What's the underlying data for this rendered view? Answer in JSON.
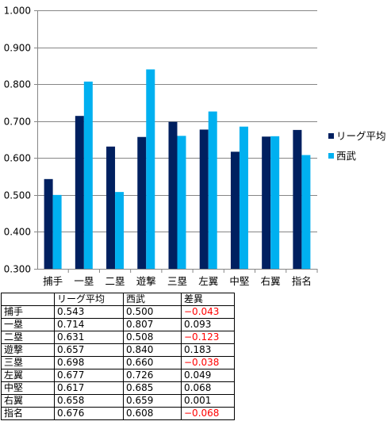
{
  "chart_data": {
    "type": "bar",
    "categories": [
      "捕手",
      "一塁",
      "二塁",
      "遊撃",
      "三塁",
      "左翼",
      "中堅",
      "右翼",
      "指名"
    ],
    "series": [
      {
        "name": "リーグ平均",
        "color": "#002060",
        "values": [
          0.543,
          0.714,
          0.631,
          0.657,
          0.698,
          0.677,
          0.617,
          0.658,
          0.676
        ]
      },
      {
        "name": "西武",
        "color": "#00b0f0",
        "values": [
          0.5,
          0.807,
          0.508,
          0.84,
          0.66,
          0.726,
          0.685,
          0.659,
          0.608
        ]
      }
    ],
    "yticks": [
      "1.000",
      "0.900",
      "0.800",
      "0.700",
      "0.600",
      "0.500",
      "0.400",
      "0.300"
    ],
    "ylim": [
      0.3,
      1.0
    ],
    "grid": true,
    "legend": "right"
  },
  "table": {
    "headers": [
      "",
      "リーグ平均",
      "西武",
      "差異"
    ],
    "rows": [
      {
        "pos": "捕手",
        "avg": "0.543",
        "team": "0.500",
        "diff": "−0.043",
        "negative": true
      },
      {
        "pos": "一塁",
        "avg": "0.714",
        "team": "0.807",
        "diff": "0.093",
        "negative": false
      },
      {
        "pos": "二塁",
        "avg": "0.631",
        "team": "0.508",
        "diff": "−0.123",
        "negative": true
      },
      {
        "pos": "遊撃",
        "avg": "0.657",
        "team": "0.840",
        "diff": "0.183",
        "negative": false
      },
      {
        "pos": "三塁",
        "avg": "0.698",
        "team": "0.660",
        "diff": "−0.038",
        "negative": true
      },
      {
        "pos": "左翼",
        "avg": "0.677",
        "team": "0.726",
        "diff": "0.049",
        "negative": false
      },
      {
        "pos": "中堅",
        "avg": "0.617",
        "team": "0.685",
        "diff": "0.068",
        "negative": false
      },
      {
        "pos": "右翼",
        "avg": "0.658",
        "team": "0.659",
        "diff": "0.001",
        "negative": false
      },
      {
        "pos": "指名",
        "avg": "0.676",
        "team": "0.608",
        "diff": "−0.068",
        "negative": true
      }
    ]
  }
}
